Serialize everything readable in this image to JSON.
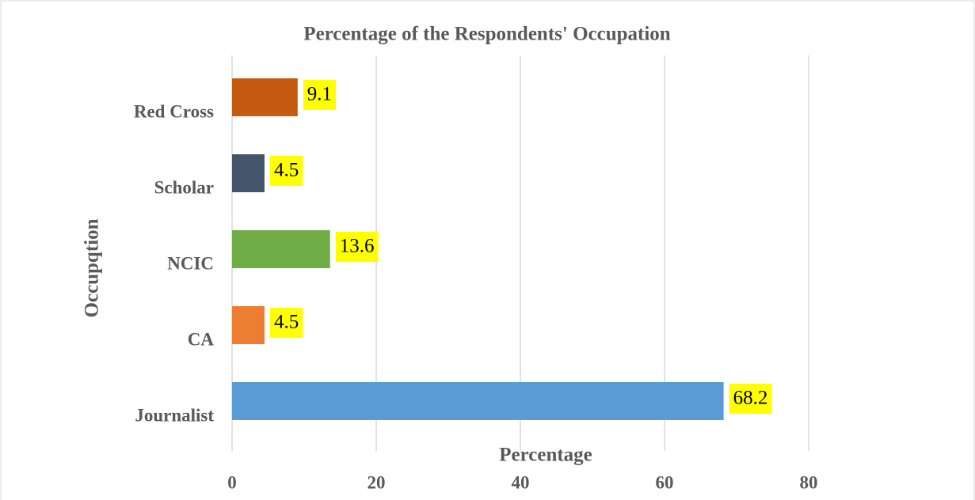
{
  "chart_data": {
    "type": "barh",
    "title": "Percentage of the Respondents' Occupation",
    "xlabel": "Percentage",
    "ylabel": "Occupqtion",
    "categories": [
      "Journalist",
      "CA",
      "NCIC",
      "Scholar",
      "Red Cross"
    ],
    "values": [
      68.2,
      4.5,
      13.6,
      4.5,
      9.1
    ],
    "colors": [
      "#5b9bd5",
      "#ed7d31",
      "#70ad47",
      "#44546a",
      "#c55a11"
    ],
    "xlim": [
      0,
      100
    ],
    "xticks": [
      0,
      20,
      40,
      60,
      80
    ],
    "grid": true
  }
}
